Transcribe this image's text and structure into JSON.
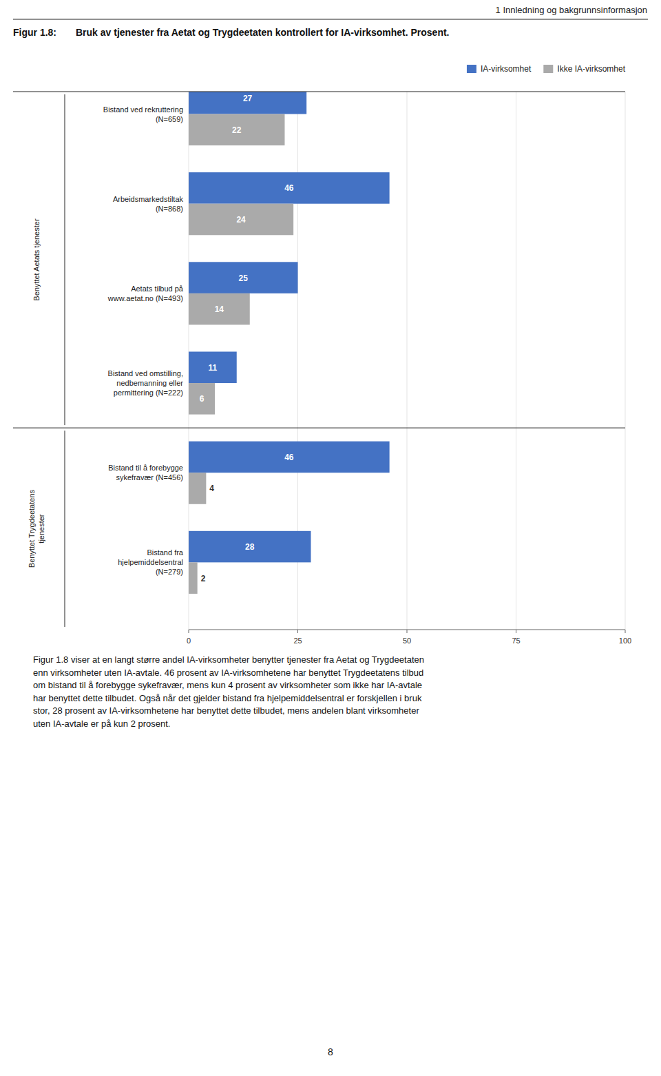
{
  "page": {
    "header": "1 Innledning og bakgrunnsinformasjon",
    "figure_label": "Figur 1.8:",
    "body_text": "Figur 1.8 viser at en langt større andel IA-virksomheter benytter tjenester fra Aetat og Trygdeetaten\nenn virksomheter uten IA-avtale. 46 prosent av IA-virksomhetene har benyttet Trygdeetatens tilbud\nom bistand til å forebygge sykefravær, mens kun 4 prosent av virksomheter som ikke har IA-avtale\nhar benyttet dette tilbudet. Også når det gjelder bistand fra hjelpemiddelsentral er forskjellen i bruk\nstor, 28 prosent av IA-virksomhetene har benyttet dette tilbudet, mens andelen blant virksomheter\nuten IA-avtale er på kun 2 prosent.",
    "page_number": 8
  },
  "chart_data": {
    "type": "bar",
    "orientation": "horizontal",
    "title": "Bruk av tjenester fra Aetat og Trygdeetaten kontrollert for IA-virksomhet. Prosent.",
    "categories": [
      "Bistand ved rekruttering\n(N=659)",
      "Arbeidsmarkedstiltak\n(N=868)",
      "Aetats tilbud på\nwww.aetat.no (N=493)",
      "Bistand ved omstilling,\nnedbemanning eller\npermittering (N=222)",
      "Bistand til å forebygge\nsykefravær (N=456)",
      "Bistand fra\nhjelpemiddelsentral\n(N=279)"
    ],
    "series": [
      {
        "name": "IA-virksomhet",
        "color": "#4472C4",
        "values": [
          27,
          46,
          25,
          11,
          46,
          28
        ]
      },
      {
        "name": "Ikke IA-virksomhet",
        "color": "#AAAAAA",
        "values": [
          22,
          24,
          14,
          6,
          4,
          2
        ]
      }
    ],
    "groups": [
      {
        "label": "Benyttet Aetats tjenester",
        "categories": [
          "Bistand ved rekruttering\n(N=659)",
          "Arbeidsmarkedstiltak\n(N=868)",
          "Aetats tilbud på\nwww.aetat.no (N=493)",
          "Bistand ved omstilling,\nnedbemanning eller\npermittering (N=222)"
        ]
      },
      {
        "label": "Benyttet Trygdeetatens\ntjenester",
        "categories": [
          "Bistand til å forebygge\nsykefravær (N=456)",
          "Bistand fra\nhjelpemiddelsentral\n(N=279)"
        ]
      }
    ],
    "xlim": [
      0,
      100
    ],
    "xticks": [
      0,
      25,
      50,
      75,
      100
    ],
    "grid": true,
    "legend": "top-right",
    "data_labels": true
  }
}
